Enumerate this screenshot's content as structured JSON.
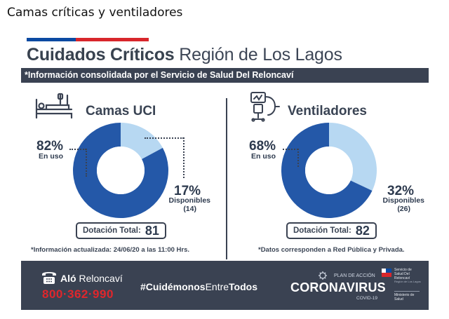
{
  "caption": "Camas críticas y ventiladores",
  "header": {
    "title_bold": "Cuidados Críticos",
    "title_rest": " Región de Los Lagos",
    "info": "*Información consolidada por el Servicio de Salud Del Reloncaví"
  },
  "icons": {
    "beds": "hospital-bed-icon",
    "ventilators": "ventilator-icon",
    "phone": "phone-icon",
    "plan": "virus-icon",
    "seal": "government-seal-icon"
  },
  "colors": {
    "in_use": "#2458a8",
    "available": "#b7d8f2",
    "bar": "#3a4252",
    "flag_blue": "#0b4aa2",
    "flag_red": "#d8262b",
    "phone_red": "#e0262c"
  },
  "chart_data": [
    {
      "type": "pie",
      "title": "Camas UCI",
      "categories": [
        "En uso",
        "Disponibles"
      ],
      "values": [
        82,
        17
      ],
      "value_labels": [
        "82%",
        "17%"
      ],
      "counts": [
        null,
        14
      ],
      "count_labels": [
        "",
        "(14)"
      ],
      "total_label": "Dotación Total:",
      "total": "81",
      "colors": [
        "#2458a8",
        "#b7d8f2"
      ]
    },
    {
      "type": "pie",
      "title": "Ventiladores",
      "categories": [
        "En uso",
        "Disponibles"
      ],
      "values": [
        68,
        32
      ],
      "value_labels": [
        "68%",
        "32%"
      ],
      "counts": [
        null,
        26
      ],
      "count_labels": [
        "",
        "(26)"
      ],
      "total_label": "Dotación Total:",
      "total": "82",
      "colors": [
        "#2458a8",
        "#b7d8f2"
      ]
    }
  ],
  "notes": {
    "left": "*Información actualizada: 24/06/20 a las 11:00 Hrs.",
    "right": "*Datos corresponden a Red Pública y Privada."
  },
  "footer": {
    "alo_bold": "Aló",
    "alo_rest": " Reloncaví",
    "phone": "800·362·990",
    "hashtag_a": "#Cuidémonos",
    "hashtag_b": "Entre",
    "hashtag_c": "Todos",
    "plan": "PLAN DE ACCIÓN",
    "corona": "CORONAVIRUS",
    "covid": "COVID-19",
    "gov_lines": [
      "Servicio de",
      "Salud Del",
      "Reloncaví"
    ],
    "gov_small": "Región de Los Lagos",
    "gov_lines2": [
      "Ministerio de",
      "Salud"
    ]
  }
}
